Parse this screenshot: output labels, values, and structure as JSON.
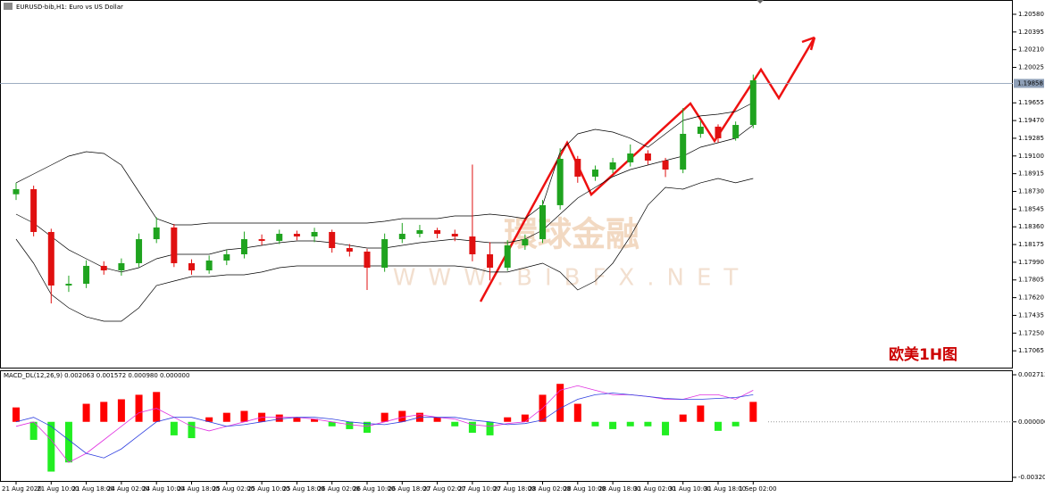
{
  "chart_data": [
    {
      "type": "candlestick",
      "title": "EURUSD-bib,H1: Euro vs US Dollar",
      "annotation": "欧美1H图",
      "watermark": "環球金融",
      "watermark_url": "WWW.BIBFX.NET",
      "categories": [
        "21 Aug 2020",
        null,
        "21 Aug 10:00",
        null,
        "21 Aug 18:00",
        null,
        "24 Aug 02:00",
        null,
        "24 Aug 10:00",
        null,
        "24 Aug 18:00",
        null,
        "25 Aug 02:00",
        null,
        "25 Aug 10:00",
        null,
        "25 Aug 18:00",
        null,
        "26 Aug 02:00",
        null,
        "26 Aug 10:00",
        null,
        "26 Aug 18:00",
        null,
        "27 Aug 02:00",
        null,
        "27 Aug 10:00",
        null,
        "27 Aug 18:00",
        null,
        "28 Aug 02:00",
        null,
        "28 Aug 10:00",
        null,
        "28 Aug 18:00",
        null,
        "31 Aug 02:00",
        null,
        "31 Aug 10:00",
        null,
        "31 Aug 18:00",
        null,
        "1 Sep 02:00"
      ],
      "open": [
        1.187,
        1.18753,
        1.18306,
        1.17747,
        1.17765,
        1.17952,
        1.17905,
        1.1798,
        1.18231,
        1.18353,
        1.1798,
        1.17905,
        1.18008,
        1.18073,
        1.18231,
        1.18213,
        1.18287,
        1.18259,
        1.18306,
        1.18138,
        1.18101,
        1.17933,
        1.18231,
        1.18287,
        1.18325,
        1.18287,
        1.18259,
        1.18073,
        1.17933,
        1.18166,
        1.18231,
        1.18586,
        1.1907,
        1.18884,
        1.18958,
        1.19033,
        1.19126,
        1.19052,
        1.18958,
        1.19331,
        1.19406,
        1.19285,
        1.19424
      ],
      "high": [
        1.1882,
        1.1879,
        1.1834,
        1.1785,
        1.1801,
        1.18,
        1.1803,
        1.1829,
        1.1846,
        1.1839,
        1.1802,
        1.1806,
        1.1812,
        1.1831,
        1.1828,
        1.1833,
        1.1832,
        1.1835,
        1.1833,
        1.1818,
        1.1813,
        1.1829,
        1.184,
        1.1838,
        1.1835,
        1.1833,
        1.1901,
        1.182,
        1.1822,
        1.1828,
        1.1864,
        1.1918,
        1.191,
        1.19,
        1.1908,
        1.1922,
        1.1916,
        1.1908,
        1.196,
        1.1947,
        1.1943,
        1.1946,
        1.1995
      ],
      "low": [
        1.1864,
        1.1826,
        1.1756,
        1.1768,
        1.1772,
        1.1786,
        1.1785,
        1.1794,
        1.1819,
        1.1794,
        1.1786,
        1.1787,
        1.1796,
        1.1803,
        1.1817,
        1.1818,
        1.1822,
        1.182,
        1.1809,
        1.1805,
        1.177,
        1.1789,
        1.1819,
        1.1825,
        1.1824,
        1.1821,
        1.18,
        1.178,
        1.179,
        1.1812,
        1.1819,
        1.1854,
        1.1882,
        1.1884,
        1.1892,
        1.1899,
        1.1901,
        1.1888,
        1.1892,
        1.1929,
        1.1924,
        1.1926,
        1.1939
      ],
      "close": [
        1.18753,
        1.18306,
        1.17747,
        1.17765,
        1.17952,
        1.17905,
        1.1798,
        1.18231,
        1.18353,
        1.1798,
        1.17905,
        1.18008,
        1.18073,
        1.18231,
        1.18213,
        1.18287,
        1.18259,
        1.18306,
        1.18138,
        1.18101,
        1.17933,
        1.18231,
        1.18287,
        1.18325,
        1.18287,
        1.18259,
        1.18073,
        1.17933,
        1.18166,
        1.18231,
        1.18586,
        1.1907,
        1.18884,
        1.18958,
        1.19033,
        1.19126,
        1.19052,
        1.18958,
        1.19331,
        1.19406,
        1.19285,
        1.19424,
        1.1989
      ],
      "up_color": "#1fa31f",
      "down_color": "#e01010",
      "bands": [
        {
          "color": "#000000",
          "values": [
            1.18819,
            1.18912,
            1.19005,
            1.19098,
            1.19145,
            1.19126,
            1.19005,
            1.18725,
            1.18446,
            1.1838,
            1.1838,
            1.18399,
            1.18399,
            1.18399,
            1.18399,
            1.18399,
            1.18399,
            1.18399,
            1.18399,
            1.18399,
            1.18399,
            1.18418,
            1.18446,
            1.18446,
            1.18446,
            1.18474,
            1.18474,
            1.18492,
            1.18474,
            1.18446,
            1.18586,
            1.19145,
            1.19331,
            1.19378,
            1.1935,
            1.19285,
            1.19191,
            1.19331,
            1.19471,
            1.19518,
            1.19536,
            1.19564,
            1.19657
          ]
        },
        {
          "color": "#000000",
          "values": [
            1.18492,
            1.18399,
            1.18259,
            1.1812,
            1.18026,
            1.17933,
            1.17887,
            1.17933,
            1.18026,
            1.18073,
            1.18073,
            1.18073,
            1.1812,
            1.18138,
            1.18166,
            1.18194,
            1.18213,
            1.18213,
            1.18194,
            1.18166,
            1.18138,
            1.18138,
            1.18166,
            1.18194,
            1.18213,
            1.18231,
            1.18213,
            1.18194,
            1.18194,
            1.18231,
            1.18325,
            1.18492,
            1.1866,
            1.18772,
            1.18884,
            1.18958,
            1.19005,
            1.19052,
            1.19098,
            1.19191,
            1.19238,
            1.19285,
            1.19424
          ]
        },
        {
          "color": "#000000",
          "values": [
            1.18231,
            1.1798,
            1.17654,
            1.17514,
            1.1742,
            1.17374,
            1.17374,
            1.17514,
            1.17747,
            1.17793,
            1.1784,
            1.1784,
            1.17859,
            1.17859,
            1.17887,
            1.17933,
            1.17952,
            1.17952,
            1.17952,
            1.17952,
            1.17952,
            1.17952,
            1.17952,
            1.17952,
            1.17952,
            1.17952,
            1.17933,
            1.17887,
            1.17887,
            1.17933,
            1.1798,
            1.17887,
            1.177,
            1.17793,
            1.1798,
            1.18259,
            1.18586,
            1.18772,
            1.18753,
            1.18819,
            1.18865,
            1.18819,
            1.18865
          ]
        }
      ],
      "current_price": 1.19858,
      "ylim": [
        1.1688,
        1.20729
      ],
      "yticks": [
        {
          "value": 1.2058,
          "label": "1.20580"
        },
        1.20395,
        {
          "value": 1.2021,
          "label": "1.20210"
        },
        1.20025,
        1.19655,
        {
          "value": 1.1947,
          "label": "1.19470"
        },
        1.19285,
        {
          "value": 1.191,
          "label": "1.19100"
        },
        1.18915,
        {
          "value": 1.1873,
          "label": "1.18730"
        },
        1.18545,
        {
          "value": 1.1836,
          "label": "1.18360"
        },
        1.18175,
        {
          "value": 1.1799,
          "label": "1.17990"
        },
        1.17805,
        {
          "value": 1.1762,
          "label": "1.17620"
        },
        1.17435,
        {
          "value": 1.1725,
          "label": "1.17250"
        },
        1.17065
      ]
    },
    {
      "type": "macd",
      "title": "MACD_DL(12,26,9) 0.002063 0.001572 0.000980 0.000000",
      "histogram": [
        0.00083,
        -0.00104,
        -0.00287,
        -0.00234,
        0.00104,
        0.00115,
        0.0013,
        0.00156,
        0.00172,
        -0.00078,
        -0.00094,
        0.00026,
        0.00052,
        0.00063,
        0.00052,
        0.00042,
        0.00026,
        0.00016,
        -0.00026,
        -0.00042,
        -0.00063,
        0.00052,
        0.00063,
        0.00052,
        0.00026,
        -0.00026,
        -0.00063,
        -0.00078,
        0.00026,
        0.00042,
        0.00156,
        0.00219,
        0.00104,
        -0.00026,
        -0.00042,
        -0.00026,
        -0.00026,
        -0.00078,
        0.00042,
        0.00094,
        -0.00052,
        -0.00026,
        0.00115
      ],
      "up_color": "#ff0000",
      "down_color": "#22ee22",
      "lines": [
        {
          "color": "#e030e0",
          "values": [
            -0.00026,
            0,
            -0.00104,
            -0.00234,
            -0.00182,
            -0.00104,
            -0.00026,
            0.00052,
            0.00078,
            0.00026,
            -0.00026,
            -0.00052,
            -0.00026,
            0,
            0.00026,
            0.00026,
            0.00026,
            0.00016,
            0,
            -0.00016,
            -0.00026,
            0,
            0.00026,
            0.00042,
            0.00026,
            0.00016,
            -0.00016,
            -0.00026,
            -0.0001,
            0,
            0.00078,
            0.00182,
            0.00208,
            0.00182,
            0.00156,
            0.00156,
            0.00146,
            0.0013,
            0.0013,
            0.00156,
            0.00156,
            0.0013,
            0.00182
          ]
        },
        {
          "color": "#3040e0",
          "values": [
            0,
            0.00026,
            -0.00026,
            -0.00104,
            -0.00182,
            -0.00208,
            -0.00156,
            -0.00078,
            0,
            0.00026,
            0.00026,
            0,
            -0.00026,
            -0.00016,
            0,
            0.00016,
            0.00026,
            0.00026,
            0.00016,
            0,
            -0.0001,
            -0.00016,
            0,
            0.00026,
            0.00026,
            0.00026,
            0.0001,
            0,
            -0.00016,
            -0.0001,
            0.0001,
            0.00078,
            0.0013,
            0.00156,
            0.00166,
            0.00156,
            0.00146,
            0.00135,
            0.0013,
            0.0013,
            0.00135,
            0.0014,
            0.00156
          ]
        }
      ],
      "ylim": [
        -0.00346,
        0.00292
      ],
      "yticks": [
        0.002713,
        {
          "value": 0,
          "label": "0.000000"
        },
        -0.003201
      ]
    }
  ]
}
